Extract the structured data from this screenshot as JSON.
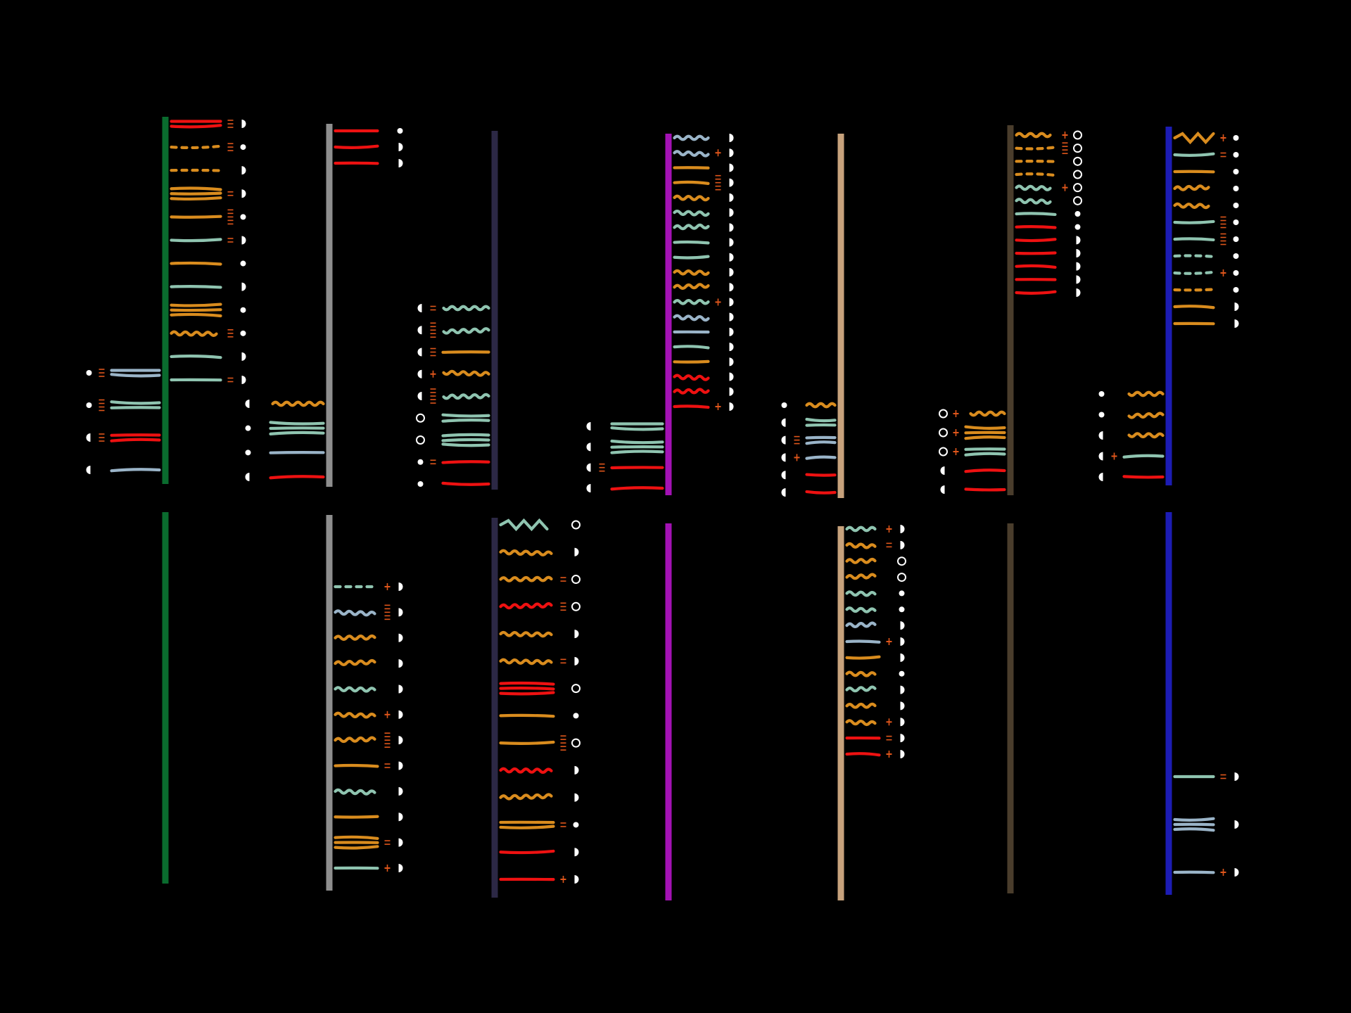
{
  "palette": {
    "background": "#000000",
    "red": "#ee1111",
    "orange": "#d98c1e",
    "mint": "#8fc4b0",
    "blue_grey": "#9ab4c8",
    "white": "#ffffff",
    "tick": "#e0561b"
  },
  "spine_colors": [
    "#0a6b2e",
    "#8e8e8e",
    "#2c2845",
    "#a312b4",
    "#c7a27c",
    "#4a3d2c",
    "#1c1cb4"
  ],
  "columns": [
    {
      "top": {
        "right": [
          [
            "red",
            "straight",
            2,
            3,
            "half"
          ],
          [
            "orange",
            "dashed",
            1,
            3,
            "dot"
          ],
          [
            "orange",
            "dashed",
            1,
            0,
            "half"
          ],
          [
            "orange",
            "straight",
            3,
            2,
            "half"
          ],
          [
            "orange",
            "straight",
            1,
            5,
            "dot"
          ],
          [
            "mint",
            "straight",
            1,
            2,
            "half"
          ],
          [
            "orange",
            "straight",
            1,
            0,
            "dot"
          ],
          [
            "mint",
            "straight",
            1,
            0,
            "half"
          ],
          [
            "orange",
            "straight",
            3,
            0,
            "dot"
          ],
          [
            "orange",
            "wavy",
            1,
            3,
            "dot"
          ],
          [
            "mint",
            "straight",
            1,
            0,
            "half"
          ],
          [
            "mint",
            "straight",
            1,
            2,
            "half"
          ]
        ],
        "left": [
          [
            "blue_grey",
            "straight",
            2,
            3,
            "dot"
          ],
          [
            "mint",
            "straight",
            2,
            4,
            "dot"
          ],
          [
            "red",
            "straight",
            2,
            3,
            "half"
          ],
          [
            "blue_grey",
            "straight",
            1,
            0,
            "half"
          ]
        ]
      },
      "bottom": {
        "right": [],
        "left": []
      }
    },
    {
      "top": {
        "right": [
          [
            "red",
            "straight",
            1,
            0,
            "dot"
          ],
          [
            "red",
            "straight",
            1,
            0,
            "half"
          ],
          [
            "red",
            "straight",
            1,
            0,
            "half"
          ]
        ],
        "left": [
          [
            "orange",
            "wavy",
            1,
            0,
            "half"
          ],
          [
            "mint",
            "straight",
            3,
            0,
            "dot"
          ],
          [
            "blue_grey",
            "straight",
            1,
            0,
            "dot"
          ],
          [
            "red",
            "straight",
            1,
            0,
            "half"
          ]
        ]
      },
      "bottom": {
        "right": [
          [
            "mint",
            "dashed",
            1,
            1,
            "half"
          ],
          [
            "blue_grey",
            "wavy",
            1,
            5,
            "half"
          ],
          [
            "orange",
            "wavy",
            1,
            0,
            "half"
          ],
          [
            "orange",
            "wavy",
            1,
            0,
            "half"
          ],
          [
            "mint",
            "wavy",
            1,
            0,
            "half"
          ],
          [
            "orange",
            "wavy",
            1,
            1,
            "half"
          ],
          [
            "orange",
            "wavy",
            1,
            5,
            "half"
          ],
          [
            "orange",
            "straight",
            1,
            2,
            "half"
          ],
          [
            "mint",
            "wavy",
            1,
            0,
            "half"
          ],
          [
            "orange",
            "straight",
            1,
            0,
            "half"
          ],
          [
            "orange",
            "straight",
            3,
            2,
            "half"
          ],
          [
            "mint",
            "straight",
            1,
            1,
            "half"
          ]
        ],
        "left": []
      }
    },
    {
      "top": {
        "right": [],
        "left": [
          [
            "mint",
            "wavy",
            1,
            2,
            "half"
          ],
          [
            "mint",
            "wavy",
            1,
            5,
            "half"
          ],
          [
            "orange",
            "straight",
            1,
            3,
            "half"
          ],
          [
            "orange",
            "wavy",
            1,
            1,
            "half"
          ],
          [
            "mint",
            "wavy",
            1,
            5,
            "half"
          ],
          [
            "mint",
            "straight",
            2,
            0,
            "ring"
          ],
          [
            "mint",
            "straight",
            3,
            0,
            "ring"
          ],
          [
            "red",
            "straight",
            1,
            2,
            "dot"
          ],
          [
            "red",
            "straight",
            1,
            0,
            "dot"
          ]
        ]
      },
      "bottom": {
        "right": [
          [
            "mint",
            "zigzag",
            1,
            0,
            "ring"
          ],
          [
            "orange",
            "wavy",
            1,
            0,
            "half"
          ],
          [
            "orange",
            "wavy",
            1,
            2,
            "ring"
          ],
          [
            "red",
            "wavy",
            1,
            3,
            "ring"
          ],
          [
            "orange",
            "wavy",
            1,
            0,
            "half"
          ],
          [
            "orange",
            "wavy",
            1,
            2,
            "half"
          ],
          [
            "red",
            "straight",
            3,
            0,
            "ring"
          ],
          [
            "orange",
            "straight",
            1,
            0,
            "dot"
          ],
          [
            "orange",
            "straight",
            1,
            5,
            "ring"
          ],
          [
            "red",
            "wavy",
            1,
            0,
            "half"
          ],
          [
            "orange",
            "wavy",
            1,
            0,
            "half"
          ],
          [
            "orange",
            "straight",
            2,
            2,
            "dot"
          ],
          [
            "red",
            "straight",
            1,
            0,
            "half"
          ],
          [
            "red",
            "straight",
            1,
            1,
            "half"
          ]
        ],
        "left": []
      }
    },
    {
      "top": {
        "right": [
          [
            "blue_grey",
            "wavy",
            1,
            0,
            "half"
          ],
          [
            "blue_grey",
            "wavy",
            1,
            1,
            "half"
          ],
          [
            "orange",
            "straight",
            1,
            0,
            "half"
          ],
          [
            "orange",
            "straight",
            1,
            5,
            "half"
          ],
          [
            "orange",
            "wavy",
            1,
            0,
            "half"
          ],
          [
            "mint",
            "wavy",
            1,
            0,
            "half"
          ],
          [
            "mint",
            "wavy",
            1,
            0,
            "half"
          ],
          [
            "mint",
            "straight",
            1,
            0,
            "half"
          ],
          [
            "mint",
            "straight",
            1,
            0,
            "half"
          ],
          [
            "orange",
            "wavy",
            1,
            0,
            "half"
          ],
          [
            "orange",
            "wavy",
            1,
            0,
            "half"
          ],
          [
            "mint",
            "wavy",
            1,
            1,
            "half"
          ],
          [
            "blue_grey",
            "wavy",
            1,
            0,
            "half"
          ],
          [
            "blue_grey",
            "straight",
            1,
            0,
            "half"
          ],
          [
            "mint",
            "straight",
            1,
            0,
            "half"
          ],
          [
            "orange",
            "straight",
            1,
            0,
            "half"
          ],
          [
            "red",
            "wavy",
            1,
            0,
            "half"
          ],
          [
            "red",
            "wavy",
            1,
            0,
            "half"
          ],
          [
            "red",
            "straight",
            1,
            1,
            "half"
          ]
        ],
        "left": [
          [
            "mint",
            "straight",
            2,
            0,
            "half"
          ],
          [
            "mint",
            "straight",
            3,
            0,
            "half"
          ],
          [
            "red",
            "straight",
            1,
            3,
            "half"
          ],
          [
            "red",
            "straight",
            1,
            0,
            "half"
          ]
        ]
      },
      "bottom": {
        "right": [],
        "left": []
      }
    },
    {
      "top": {
        "right": [],
        "left": [
          [
            "orange",
            "wavy",
            1,
            0,
            "dot"
          ],
          [
            "mint",
            "straight",
            2,
            0,
            "half"
          ],
          [
            "blue_grey",
            "straight",
            2,
            3,
            "half"
          ],
          [
            "blue_grey",
            "straight",
            1,
            1,
            "half"
          ],
          [
            "red",
            "straight",
            1,
            0,
            "half"
          ],
          [
            "red",
            "straight",
            1,
            0,
            "half"
          ]
        ]
      },
      "bottom": {
        "right": [
          [
            "mint",
            "wavy",
            1,
            1,
            "half"
          ],
          [
            "orange",
            "wavy",
            1,
            2,
            "half"
          ],
          [
            "orange",
            "wavy",
            1,
            0,
            "ring"
          ],
          [
            "orange",
            "wavy",
            1,
            0,
            "ring"
          ],
          [
            "mint",
            "wavy",
            1,
            0,
            "dot"
          ],
          [
            "mint",
            "wavy",
            1,
            0,
            "dot"
          ],
          [
            "blue_grey",
            "wavy",
            1,
            0,
            "half"
          ],
          [
            "blue_grey",
            "straight",
            1,
            1,
            "half"
          ],
          [
            "orange",
            "straight",
            1,
            0,
            "half"
          ],
          [
            "orange",
            "wavy",
            1,
            0,
            "dot"
          ],
          [
            "mint",
            "wavy",
            1,
            0,
            "half"
          ],
          [
            "orange",
            "wavy",
            1,
            0,
            "half"
          ],
          [
            "orange",
            "wavy",
            1,
            1,
            "half"
          ],
          [
            "red",
            "straight",
            1,
            2,
            "half"
          ],
          [
            "red",
            "straight",
            1,
            1,
            "half"
          ]
        ],
        "left": []
      }
    },
    {
      "top": {
        "right": [
          [
            "orange",
            "wavy",
            1,
            1,
            "ring"
          ],
          [
            "orange",
            "dashed",
            1,
            4,
            "ring"
          ],
          [
            "orange",
            "dashed",
            1,
            0,
            "ring"
          ],
          [
            "orange",
            "dashed",
            1,
            0,
            "ring"
          ],
          [
            "mint",
            "wavy",
            1,
            1,
            "ring"
          ],
          [
            "mint",
            "wavy",
            1,
            0,
            "ring"
          ],
          [
            "mint",
            "straight",
            1,
            0,
            "dot"
          ],
          [
            "red",
            "straight",
            1,
            0,
            "dot"
          ],
          [
            "red",
            "straight",
            1,
            0,
            "half"
          ],
          [
            "red",
            "straight",
            1,
            0,
            "half"
          ],
          [
            "red",
            "straight",
            1,
            0,
            "half"
          ],
          [
            "red",
            "straight",
            1,
            0,
            "half"
          ],
          [
            "red",
            "straight",
            1,
            0,
            "half"
          ]
        ],
        "left": [
          [
            "orange",
            "wavy",
            1,
            1,
            "ring"
          ],
          [
            "orange",
            "straight",
            3,
            1,
            "ring"
          ],
          [
            "mint",
            "straight",
            2,
            1,
            "ring"
          ],
          [
            "red",
            "straight",
            1,
            0,
            "half"
          ],
          [
            "red",
            "straight",
            1,
            0,
            "half"
          ]
        ]
      },
      "bottom": {
        "right": [],
        "left": []
      }
    },
    {
      "top": {
        "right": [
          [
            "orange",
            "zigzag",
            1,
            1,
            "dot"
          ],
          [
            "mint",
            "straight",
            1,
            2,
            "dot"
          ],
          [
            "orange",
            "straight",
            1,
            0,
            "dot"
          ],
          [
            "orange",
            "wavy",
            1,
            0,
            "dot"
          ],
          [
            "orange",
            "wavy",
            1,
            0,
            "dot"
          ],
          [
            "mint",
            "straight",
            1,
            4,
            "dot"
          ],
          [
            "mint",
            "straight",
            1,
            4,
            "dot"
          ],
          [
            "mint",
            "dashed",
            1,
            0,
            "dot"
          ],
          [
            "mint",
            "dashed",
            1,
            1,
            "dot"
          ],
          [
            "orange",
            "dashed",
            1,
            0,
            "dot"
          ],
          [
            "orange",
            "straight",
            1,
            0,
            "half"
          ],
          [
            "orange",
            "straight",
            1,
            0,
            "half"
          ]
        ],
        "left": [
          [
            "orange",
            "wavy",
            1,
            0,
            "dot"
          ],
          [
            "orange",
            "wavy",
            1,
            0,
            "dot"
          ],
          [
            "orange",
            "wavy",
            1,
            0,
            "half"
          ],
          [
            "mint",
            "straight",
            1,
            1,
            "half"
          ],
          [
            "red",
            "straight",
            1,
            0,
            "half"
          ]
        ]
      },
      "bottom": {
        "right": [
          [
            "mint",
            "straight",
            1,
            2,
            "half"
          ],
          [
            "blue_grey",
            "straight",
            3,
            0,
            "half"
          ],
          [
            "blue_grey",
            "straight",
            1,
            1,
            "half"
          ]
        ],
        "left": []
      }
    }
  ]
}
